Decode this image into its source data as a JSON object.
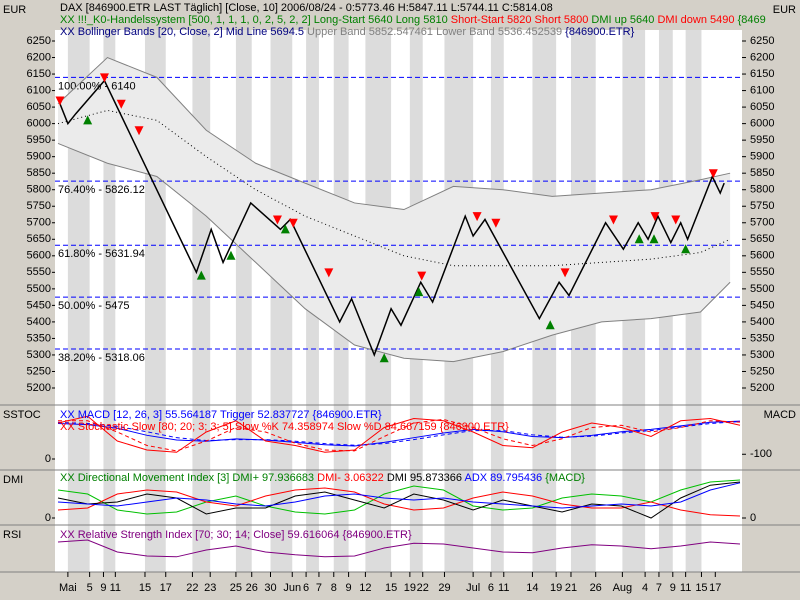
{
  "chart_data": [
    {
      "type": "line",
      "y_label": "EUR",
      "y2_label": "EUR",
      "legend": [
        [
          {
            "text": "DAX [846900.ETR LAST Täglich] [Close, 10] 2006/08/24 - 0:5773.46 H:5847.11 L:5744.11 C:5814.08",
            "color": "#000000"
          }
        ],
        [
          {
            "text": "XX !!!_K0-Handelssystem [500, 1, 1, 1, 0, 2, 5, 2, 2] Long-Start 5640 Long 5810",
            "color": "#008000"
          },
          {
            "text": " Short-Start 5820 Short 5800",
            "color": "#ff0000"
          },
          {
            "text": " DMI up 5640",
            "color": "#008000"
          },
          {
            "text": " DMI down 5490",
            "color": "#ff0000"
          },
          {
            "text": " {8469",
            "color": "#008000"
          }
        ],
        [
          {
            "text": "XX Bollinger Bands [20, Close, 2] Mid Line 5694.5",
            "color": "#000080"
          },
          {
            "text": " Upper Band 5852.547461 Lower Band 5536.452539",
            "color": "#808080"
          },
          {
            "text": " {846900.ETR}",
            "color": "#000080"
          }
        ]
      ],
      "xlim": [
        0,
        69
      ],
      "ylim": [
        5200,
        6250
      ],
      "yticks": [
        5200,
        5250,
        5300,
        5350,
        5400,
        5450,
        5500,
        5550,
        5600,
        5650,
        5700,
        5750,
        5800,
        5850,
        5900,
        5950,
        6000,
        6050,
        6100,
        6150,
        6200,
        6250
      ],
      "band_fill": "#ebebeb",
      "fib_levels": [
        {
          "label": "100.00% - 6140",
          "value": 6140
        },
        {
          "label": "76.40% - 5826.12",
          "value": 5826.12
        },
        {
          "label": "61.80% - 5631.94",
          "value": 5631.94
        },
        {
          "label": "50.00% - 5475",
          "value": 5475
        },
        {
          "label": "38.20% - 5318.06",
          "value": 5318.06
        }
      ],
      "fib_color": "#0000ff",
      "series": [
        {
          "style": "line",
          "color": "#808080",
          "x": [
            0,
            5,
            10,
            15,
            20,
            25,
            30,
            35,
            40,
            45,
            50,
            55,
            60,
            65,
            68
          ],
          "values": [
            6060,
            6200,
            6140,
            5980,
            5880,
            5820,
            5760,
            5740,
            5810,
            5800,
            5780,
            5790,
            5800,
            5830,
            5850
          ]
        },
        {
          "style": "line",
          "color": "#808080",
          "x": [
            0,
            5,
            10,
            15,
            20,
            25,
            30,
            35,
            40,
            45,
            50,
            55,
            60,
            65,
            68
          ],
          "values": [
            5940,
            5880,
            5840,
            5720,
            5580,
            5440,
            5330,
            5290,
            5280,
            5310,
            5360,
            5400,
            5410,
            5430,
            5520
          ]
        },
        {
          "style": "dotted",
          "color": "#000000",
          "x": [
            0,
            5,
            10,
            15,
            20,
            25,
            30,
            35,
            40,
            45,
            50,
            55,
            60,
            65,
            68
          ],
          "values": [
            6000,
            6040,
            6010,
            5900,
            5800,
            5720,
            5660,
            5600,
            5570,
            5570,
            5570,
            5580,
            5590,
            5610,
            5650
          ]
        },
        {
          "style": "line",
          "color": "#000000",
          "x": [
            0.2,
            1,
            1.8,
            4.7,
            14,
            15.5,
            16.7,
            19.5,
            22.5,
            23.5,
            28.5,
            29.7,
            32,
            33.7,
            34.7,
            36.7,
            37.9,
            41.2,
            42,
            43.2,
            48.7,
            50.7,
            51.7,
            55.4,
            57.2,
            58.7,
            59.7,
            60.7,
            62,
            63,
            63.7,
            66.2,
            67,
            67.4
          ],
          "values": [
            6060,
            6000,
            6030,
            6130,
            5550,
            5680,
            5580,
            5760,
            5680,
            5710,
            5400,
            5470,
            5300,
            5440,
            5390,
            5520,
            5460,
            5720,
            5660,
            5710,
            5410,
            5520,
            5480,
            5700,
            5620,
            5700,
            5650,
            5720,
            5640,
            5700,
            5650,
            5840,
            5790,
            5820
          ]
        },
        {
          "style": "triangle-up",
          "color": "#008000",
          "x": [
            3,
            14.5,
            17.5,
            23,
            33,
            36.5,
            49.8,
            58.8,
            60.3,
            63.5
          ],
          "values": [
            6010,
            5540,
            5600,
            5680,
            5290,
            5490,
            5390,
            5650,
            5650,
            5620
          ]
        },
        {
          "style": "triangle-down",
          "color": "#ff0000",
          "x": [
            0.2,
            4.7,
            6.4,
            8.2,
            22.2,
            23.8,
            27.4,
            36.8,
            42.4,
            44.3,
            51.3,
            56.2,
            60.4,
            62.5,
            66.3
          ],
          "values": [
            6070,
            6140,
            6060,
            5980,
            5710,
            5700,
            5550,
            5540,
            5720,
            5700,
            5550,
            5710,
            5720,
            5710,
            5850
          ]
        }
      ]
    },
    {
      "type": "line",
      "y_label": "SSTOC",
      "y2_label": "MACD",
      "legend": [
        [
          {
            "text": "XX MACD [12, 26, 3] 55.564187 Trigger 52.837727 {846900.ETR}",
            "color": "#0000ff"
          }
        ],
        [
          {
            "text": "XX Stochastic Slow [80; 20; 3; 3; 5] Slow %K 74.358974 Slow %D 84.667159 {846900.ETR}",
            "color": "#ff0000"
          }
        ]
      ],
      "xlim": [
        0,
        69
      ],
      "x": [
        0,
        3,
        6,
        9,
        12,
        15,
        18,
        21,
        24,
        27,
        30,
        33,
        36,
        39,
        42,
        45,
        48,
        51,
        54,
        57,
        60,
        63,
        66,
        69
      ],
      "ylim": [
        0,
        100
      ],
      "yticks": [
        0
      ],
      "y2lim": [
        -120,
        70
      ],
      "y2ticks": [
        -100
      ],
      "series": [
        {
          "style": "line",
          "color": "#0000ff",
          "axis": "y2",
          "values": [
            30,
            25,
            10,
            -20,
            -40,
            -45,
            -35,
            -40,
            -50,
            -60,
            -65,
            -50,
            -30,
            -10,
            5,
            -5,
            -25,
            -30,
            -20,
            -5,
            5,
            20,
            35,
            40
          ]
        },
        {
          "style": "dashed",
          "color": "#0000ff",
          "axis": "y2",
          "values": [
            35,
            30,
            18,
            -5,
            -30,
            -42,
            -38,
            -38,
            -45,
            -55,
            -62,
            -55,
            -38,
            -18,
            0,
            0,
            -18,
            -28,
            -24,
            -10,
            0,
            15,
            30,
            38
          ]
        },
        {
          "style": "line",
          "color": "#ff0000",
          "values": [
            80,
            95,
            40,
            20,
            15,
            60,
            85,
            40,
            30,
            15,
            20,
            70,
            90,
            85,
            60,
            30,
            25,
            60,
            80,
            70,
            50,
            85,
            90,
            75
          ]
        },
        {
          "style": "dashed",
          "color": "#ff0000",
          "values": [
            85,
            85,
            60,
            30,
            18,
            40,
            70,
            60,
            35,
            20,
            18,
            50,
            80,
            88,
            70,
            45,
            30,
            45,
            70,
            75,
            60,
            70,
            85,
            82
          ]
        }
      ]
    },
    {
      "type": "line",
      "y_label": "DMI",
      "legend": [
        [
          {
            "text": "XX Directional Movement Index [3] DMI+ 97.936683",
            "color": "#008000"
          },
          {
            "text": " DMI- 3.06322",
            "color": "#ff0000"
          },
          {
            "text": " DMI 95.873366",
            "color": "#000000"
          },
          {
            "text": " ADX 89.795436",
            "color": "#0000ff"
          },
          {
            "text": " {MACD}",
            "color": "#008000"
          }
        ]
      ],
      "xlim": [
        0,
        69
      ],
      "x": [
        0,
        3,
        6,
        9,
        12,
        15,
        18,
        21,
        24,
        27,
        30,
        33,
        36,
        39,
        42,
        45,
        48,
        51,
        54,
        57,
        60,
        63,
        66,
        69
      ],
      "ylim": [
        0,
        100
      ],
      "yticks": [
        0
      ],
      "y2lim": [
        0,
        100
      ],
      "y2ticks": [
        0
      ],
      "series": [
        {
          "style": "line",
          "color": "#00c000",
          "values": [
            70,
            60,
            20,
            10,
            15,
            40,
            55,
            30,
            15,
            10,
            20,
            60,
            80,
            70,
            30,
            20,
            25,
            50,
            60,
            55,
            40,
            70,
            90,
            95
          ]
        },
        {
          "style": "line",
          "color": "#ff0000",
          "values": [
            20,
            25,
            60,
            70,
            65,
            40,
            30,
            55,
            70,
            75,
            65,
            35,
            20,
            25,
            50,
            65,
            55,
            35,
            25,
            25,
            40,
            20,
            8,
            5
          ]
        },
        {
          "style": "line",
          "color": "#000000",
          "values": [
            50,
            35,
            40,
            60,
            50,
            10,
            25,
            25,
            55,
            65,
            45,
            25,
            60,
            45,
            20,
            45,
            30,
            15,
            35,
            30,
            0,
            50,
            82,
            90
          ]
        },
        {
          "style": "line",
          "color": "#0000ff",
          "axis": "y2",
          "values": [
            40,
            35,
            30,
            40,
            50,
            45,
            35,
            30,
            40,
            55,
            60,
            50,
            45,
            50,
            40,
            35,
            30,
            25,
            30,
            35,
            30,
            40,
            70,
            88
          ]
        }
      ]
    },
    {
      "type": "line",
      "y_label": "RSI",
      "legend": [
        [
          {
            "text": "XX Relative Strength Index [70; 30; 14; Close] 59.616064 {846900.ETR}",
            "color": "#800080"
          }
        ]
      ],
      "xlim": [
        0,
        69
      ],
      "x": [
        0,
        3,
        6,
        9,
        12,
        15,
        18,
        21,
        24,
        27,
        30,
        33,
        36,
        39,
        42,
        45,
        48,
        51,
        54,
        57,
        60,
        63,
        66,
        69
      ],
      "ylim": [
        0,
        100
      ],
      "xticks": [
        {
          "value": 1,
          "label": "Mai"
        },
        {
          "value": 3.2,
          "label": "5"
        },
        {
          "value": 4.6,
          "label": "9"
        },
        {
          "value": 5.8,
          "label": "11"
        },
        {
          "value": 8.8,
          "label": "15"
        },
        {
          "value": 10.9,
          "label": "17"
        },
        {
          "value": 13.6,
          "label": "22"
        },
        {
          "value": 15.4,
          "label": "23"
        },
        {
          "value": 18,
          "label": "25"
        },
        {
          "value": 19.6,
          "label": "26"
        },
        {
          "value": 21.5,
          "label": "30"
        },
        {
          "value": 23.7,
          "label": "Jun"
        },
        {
          "value": 25.1,
          "label": "6"
        },
        {
          "value": 26.4,
          "label": "7"
        },
        {
          "value": 27.9,
          "label": "8"
        },
        {
          "value": 29.4,
          "label": "9"
        },
        {
          "value": 31.1,
          "label": "12"
        },
        {
          "value": 33.7,
          "label": "15"
        },
        {
          "value": 35.6,
          "label": "19"
        },
        {
          "value": 36.9,
          "label": "22"
        },
        {
          "value": 39.1,
          "label": "29"
        },
        {
          "value": 42,
          "label": "Jul"
        },
        {
          "value": 43.8,
          "label": "6"
        },
        {
          "value": 45.1,
          "label": "11"
        },
        {
          "value": 48,
          "label": "14"
        },
        {
          "value": 50.4,
          "label": "19"
        },
        {
          "value": 51.9,
          "label": "21"
        },
        {
          "value": 54.4,
          "label": "26"
        },
        {
          "value": 57.1,
          "label": "Aug"
        },
        {
          "value": 59.4,
          "label": "4"
        },
        {
          "value": 60.8,
          "label": "7"
        },
        {
          "value": 62.2,
          "label": "9"
        },
        {
          "value": 63.5,
          "label": "11"
        },
        {
          "value": 65.1,
          "label": "15"
        },
        {
          "value": 66.5,
          "label": "17"
        }
      ],
      "series": [
        {
          "style": "line",
          "color": "#800080",
          "values": [
            65,
            70,
            40,
            30,
            28,
            45,
            55,
            40,
            33,
            28,
            30,
            50,
            62,
            60,
            50,
            40,
            38,
            50,
            58,
            55,
            48,
            55,
            65,
            60
          ]
        }
      ]
    }
  ]
}
